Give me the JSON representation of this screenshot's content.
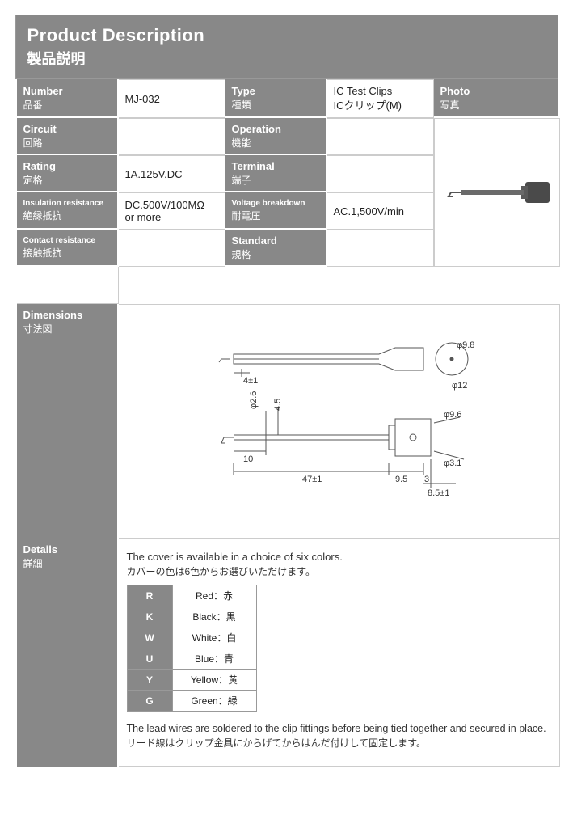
{
  "header": {
    "title_en": "Product Description",
    "title_jp": "製品説明"
  },
  "fields": {
    "number": {
      "label_en": "Number",
      "label_jp": "品番",
      "value": "MJ-032"
    },
    "type": {
      "label_en": "Type",
      "label_jp": "種類",
      "value": "IC Test Clips\nICクリップ(M)"
    },
    "photo": {
      "label_en": "Photo",
      "label_jp": "写真"
    },
    "circuit": {
      "label_en": "Circuit",
      "label_jp": "回路",
      "value": ""
    },
    "operation": {
      "label_en": "Operation",
      "label_jp": "機能",
      "value": ""
    },
    "rating": {
      "label_en": "Rating",
      "label_jp": "定格",
      "value": "1A.125V.DC"
    },
    "terminal": {
      "label_en": "Terminal",
      "label_jp": "端子",
      "value": ""
    },
    "insul": {
      "label_en": "Insulation resistance",
      "label_jp": "絶縁抵抗",
      "value": "DC.500V/100MΩ\nor more"
    },
    "voltbd": {
      "label_en": "Voltage breakdown",
      "label_jp": "耐電圧",
      "value": "AC.1,500V/min"
    },
    "contact": {
      "label_en": "Contact resistance",
      "label_jp": "接触抵抗",
      "value": ""
    },
    "standard": {
      "label_en": "Standard",
      "label_jp": "規格",
      "value": ""
    },
    "dimensions": {
      "label_en": "Dimensions",
      "label_jp": "寸法図"
    },
    "details": {
      "label_en": "Details",
      "label_jp": "詳細"
    }
  },
  "dimensions_diagram": {
    "type": "engineering-drawing",
    "stroke_color": "#555555",
    "text_color": "#333333",
    "annotations": [
      "4±1",
      "φ9.8",
      "φ12",
      "φ2.6",
      "4.5",
      "10",
      "47±1",
      "9.5",
      "3",
      "8.5±1",
      "φ9.6",
      "φ3.1"
    ]
  },
  "details": {
    "intro_en": "The cover is available in a choice of six colors.",
    "intro_jp": "カバーの色は6色からお選びいただけます。",
    "colors": [
      {
        "code": "R",
        "name": "Red：赤"
      },
      {
        "code": "K",
        "name": "Black：黒"
      },
      {
        "code": "W",
        "name": "White：白"
      },
      {
        "code": "U",
        "name": "Blue：青"
      },
      {
        "code": "Y",
        "name": "Yellow：黄"
      },
      {
        "code": "G",
        "name": "Green：緑"
      }
    ],
    "note_en": "The lead wires are soldered to the clip fittings before being tied together and secured in place.",
    "note_jp": "リード線はクリップ金具にからげてからはんだ付けして固定します。"
  },
  "style": {
    "header_bg": "#888888",
    "header_text": "#ffffff",
    "label_bg": "#888888",
    "value_border": "#cccccc",
    "table_border": "#999999",
    "body_text": "#333333"
  }
}
